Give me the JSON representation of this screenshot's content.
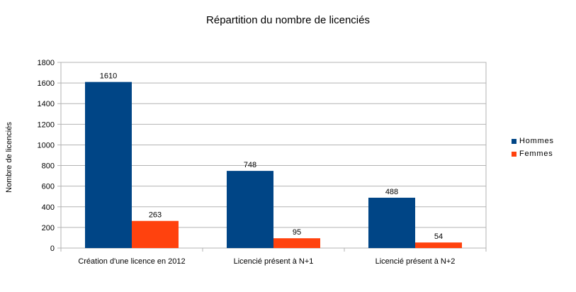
{
  "chart_data": {
    "type": "bar",
    "title": "Répartition du nombre de licenciés",
    "xlabel": "",
    "ylabel": "Nombre de licenciés",
    "categories": [
      "Création d'une licence en 2012",
      "Licencié présent à N+1",
      "Licencié présent à N+2"
    ],
    "series": [
      {
        "name": "Hommes",
        "values": [
          1610,
          748,
          488
        ],
        "color": "#004586"
      },
      {
        "name": "Femmes",
        "values": [
          263,
          95,
          54
        ],
        "color": "#ff420e"
      }
    ],
    "ylim": [
      0,
      1800
    ],
    "yticks": [
      0,
      200,
      400,
      600,
      800,
      1000,
      1200,
      1400,
      1600,
      1800
    ],
    "grid": true,
    "legend_position": "right"
  }
}
